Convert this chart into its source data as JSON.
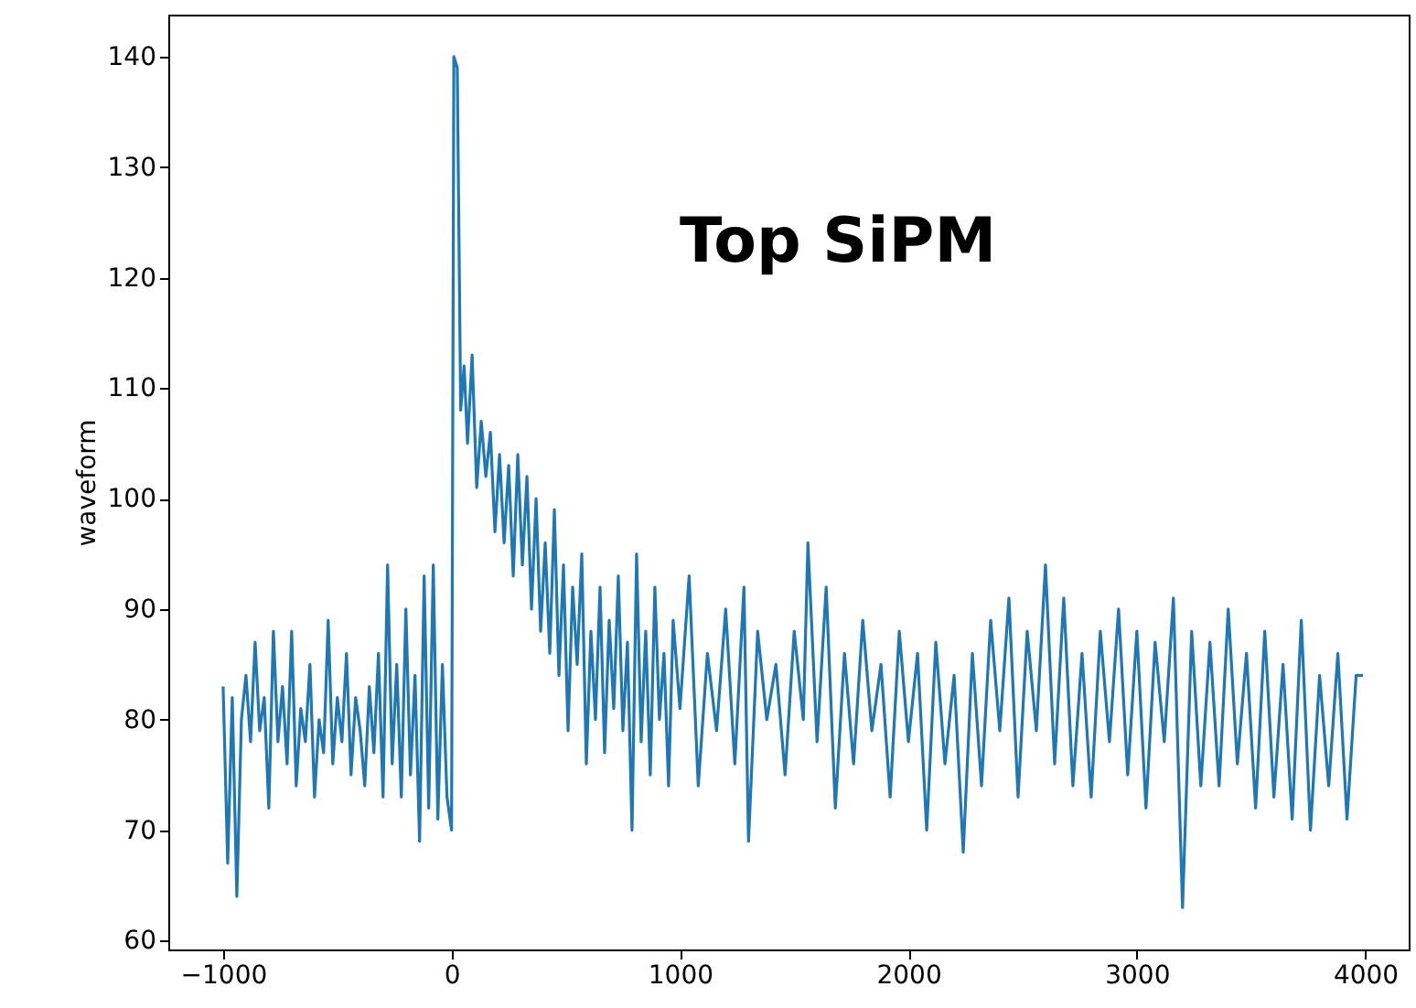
{
  "chart_data": {
    "type": "line",
    "ylabel": "waveform",
    "annotations": [
      "Top SiPM"
    ],
    "xlim": [
      -1240,
      4190
    ],
    "ylim": [
      59.2,
      143.8
    ],
    "xticks": [
      {
        "value": -1000,
        "label": "−1000"
      },
      0,
      1000,
      2000,
      3000,
      4000
    ],
    "yticks": [
      60,
      70,
      80,
      90,
      100,
      110,
      120,
      130,
      140
    ],
    "grid": false,
    "marker": "none",
    "line_style": "solid",
    "series": [
      {
        "color": "#1f77b4",
        "x": [
          -1000,
          -980,
          -960,
          -940,
          -920,
          -900,
          -880,
          -860,
          -840,
          -820,
          -800,
          -780,
          -760,
          -740,
          -720,
          -700,
          -680,
          -660,
          -640,
          -620,
          -600,
          -580,
          -560,
          -540,
          -520,
          -500,
          -480,
          -460,
          -440,
          -420,
          -400,
          -380,
          -360,
          -340,
          -320,
          -300,
          -280,
          -260,
          -240,
          -220,
          -200,
          -180,
          -160,
          -140,
          -120,
          -100,
          -80,
          -60,
          -40,
          -20,
          0,
          10,
          25,
          40,
          55,
          70,
          90,
          110,
          130,
          150,
          170,
          190,
          210,
          230,
          250,
          270,
          290,
          310,
          330,
          350,
          370,
          390,
          410,
          430,
          450,
          470,
          490,
          510,
          530,
          550,
          570,
          590,
          610,
          630,
          650,
          670,
          690,
          710,
          730,
          750,
          770,
          790,
          810,
          830,
          850,
          870,
          890,
          910,
          930,
          950,
          970,
          1000,
          1040,
          1080,
          1120,
          1160,
          1200,
          1240,
          1280,
          1300,
          1340,
          1380,
          1420,
          1460,
          1500,
          1540,
          1560,
          1600,
          1640,
          1680,
          1720,
          1760,
          1800,
          1840,
          1880,
          1920,
          1960,
          2000,
          2040,
          2080,
          2120,
          2160,
          2200,
          2240,
          2280,
          2320,
          2360,
          2400,
          2440,
          2480,
          2520,
          2560,
          2600,
          2640,
          2680,
          2720,
          2760,
          2800,
          2840,
          2880,
          2920,
          2960,
          3000,
          3040,
          3080,
          3120,
          3160,
          3200,
          3240,
          3280,
          3320,
          3360,
          3400,
          3440,
          3480,
          3520,
          3560,
          3600,
          3640,
          3680,
          3720,
          3760,
          3800,
          3840,
          3880,
          3920,
          3960,
          3990
        ],
        "values": [
          83,
          67,
          82,
          64,
          80,
          84,
          78,
          87,
          79,
          82,
          72,
          88,
          78,
          83,
          76,
          88,
          74,
          81,
          78,
          85,
          73,
          80,
          77,
          89,
          76,
          82,
          78,
          86,
          75,
          82,
          79,
          74,
          83,
          77,
          86,
          73,
          94,
          76,
          85,
          73,
          90,
          75,
          84,
          69,
          93,
          72,
          94,
          71,
          85,
          73,
          70,
          140,
          139,
          108,
          112,
          105,
          113,
          101,
          107,
          102,
          106,
          97,
          104,
          96,
          103,
          93,
          104,
          94,
          102,
          90,
          100,
          88,
          96,
          86,
          99,
          84,
          94,
          79,
          92,
          85,
          95,
          76,
          88,
          80,
          92,
          77,
          89,
          81,
          93,
          79,
          87,
          70,
          95,
          78,
          88,
          75,
          92,
          80,
          86,
          74,
          89,
          81,
          93,
          74,
          86,
          79,
          90,
          76,
          92,
          69,
          88,
          80,
          85,
          75,
          88,
          80,
          96,
          78,
          92,
          72,
          86,
          76,
          89,
          79,
          85,
          73,
          88,
          78,
          86,
          70,
          87,
          76,
          84,
          68,
          86,
          74,
          89,
          79,
          91,
          73,
          88,
          79,
          94,
          76,
          91,
          74,
          86,
          73,
          88,
          78,
          90,
          75,
          88,
          72,
          87,
          78,
          91,
          63,
          88,
          74,
          87,
          74,
          90,
          76,
          86,
          72,
          88,
          73,
          85,
          71,
          89,
          70,
          84,
          74,
          86,
          71,
          84,
          84
        ]
      }
    ]
  }
}
